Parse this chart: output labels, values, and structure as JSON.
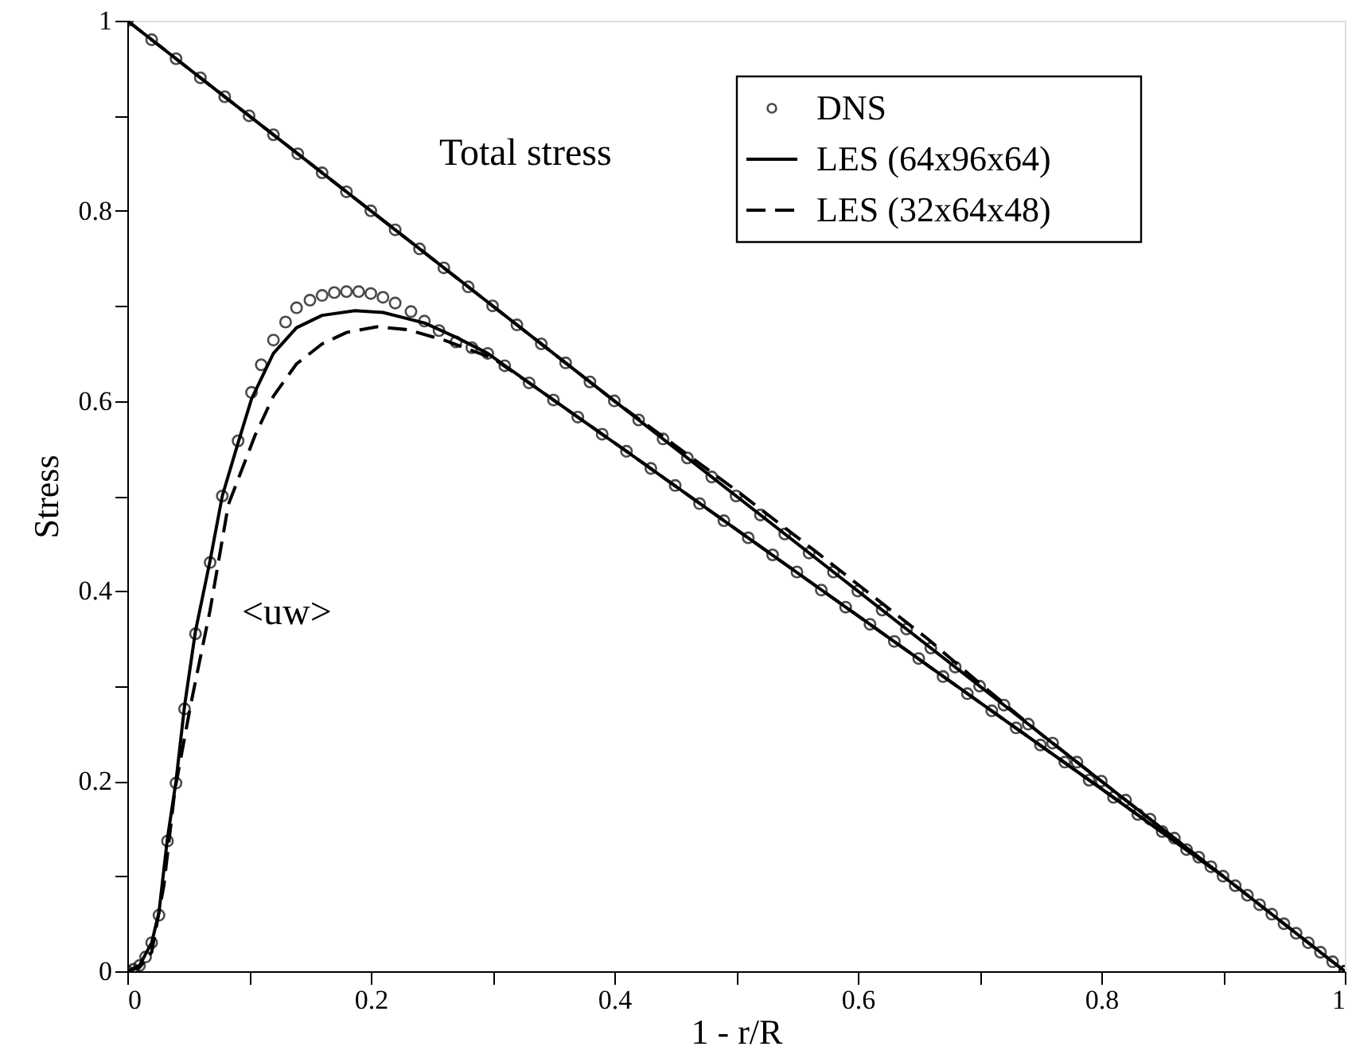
{
  "chart_data": {
    "type": "line",
    "xlabel": "1 - r/R",
    "ylabel": "Stress",
    "xlim": [
      0,
      1
    ],
    "ylim": [
      0,
      1
    ],
    "xticks": [
      0,
      {
        "value": 0.1,
        "label": null
      },
      0.2,
      {
        "value": 0.3,
        "label": null
      },
      0.4,
      {
        "value": 0.5,
        "label": null
      },
      0.6,
      {
        "value": 0.7,
        "label": null
      },
      0.8,
      {
        "value": 0.9,
        "label": null
      },
      1
    ],
    "yticks": [
      0,
      {
        "value": 0.1,
        "label": null
      },
      0.2,
      {
        "value": 0.3,
        "label": null
      },
      0.4,
      {
        "value": 0.5,
        "label": null
      },
      0.6,
      {
        "value": 0.7,
        "label": null
      },
      0.8,
      {
        "value": 0.9,
        "label": null
      },
      1
    ],
    "grid": false,
    "legend": "top right",
    "annotations": [
      "Total stress",
      "<uw>"
    ],
    "series": [
      {
        "name": "DNS",
        "type": "scatter",
        "marker": "circle",
        "color": "#000000",
        "x": [
          0,
          0.02,
          0.04,
          0.06,
          0.08,
          0.1,
          0.12,
          0.14,
          0.16,
          0.18,
          0.2,
          0.22,
          0.24,
          0.26,
          0.28,
          0.3,
          0.32,
          0.34,
          0.36,
          0.38,
          0.4,
          0.42,
          0.44,
          0.46,
          0.48,
          0.5,
          0.52,
          0.54,
          0.56,
          0.58,
          0.6,
          0.62,
          0.64,
          0.66,
          0.68,
          0.7,
          0.72,
          0.74,
          0.76,
          0.78,
          0.8,
          0.82,
          0.84,
          0.86,
          0.88,
          0.9,
          0.92,
          0.94,
          0.96,
          0.98,
          1
        ],
        "values": [
          1,
          0.98,
          0.96,
          0.94,
          0.92,
          0.9,
          0.88,
          0.86,
          0.84,
          0.82,
          0.8,
          0.78,
          0.76,
          0.74,
          0.72,
          0.7,
          0.68,
          0.66,
          0.64,
          0.62,
          0.6,
          0.58,
          0.56,
          0.54,
          0.52,
          0.5,
          0.48,
          0.46,
          0.44,
          0.42,
          0.4,
          0.38,
          0.36,
          0.34,
          0.32,
          0.3,
          0.28,
          0.26,
          0.24,
          0.22,
          0.2,
          0.18,
          0.16,
          0.14,
          0.12,
          0.1,
          0.08,
          0.06,
          0.04,
          0.02,
          0
        ]
      },
      {
        "type": "scatter",
        "marker": "circle",
        "color": "#000000",
        "x": [
          0,
          0.005,
          0.01,
          0.015,
          0.02,
          0.026,
          0.033,
          0.04,
          0.047,
          0.056,
          0.068,
          0.078,
          0.091,
          0.102,
          0.11,
          0.12,
          0.13,
          0.139,
          0.15,
          0.16,
          0.17,
          0.18,
          0.19,
          0.2,
          0.21,
          0.22,
          0.233,
          0.244,
          0.256,
          0.27,
          0.283,
          0.296,
          0.31,
          0.33,
          0.35,
          0.37,
          0.39,
          0.41,
          0.43,
          0.45,
          0.47,
          0.49,
          0.51,
          0.53,
          0.55,
          0.57,
          0.59,
          0.61,
          0.63,
          0.65,
          0.67,
          0.69,
          0.71,
          0.73,
          0.75,
          0.77,
          0.79,
          0.81,
          0.83,
          0.85,
          0.87,
          0.89,
          0.91,
          0.93,
          0.95,
          0.97,
          0.99,
          1
        ],
        "values": [
          0,
          0.002,
          0.006,
          0.015,
          0.03,
          0.059,
          0.137,
          0.198,
          0.276,
          0.355,
          0.43,
          0.5,
          0.558,
          0.609,
          0.638,
          0.664,
          0.683,
          0.698,
          0.706,
          0.711,
          0.714,
          0.715,
          0.715,
          0.713,
          0.709,
          0.703,
          0.694,
          0.684,
          0.674,
          0.662,
          0.656,
          0.65,
          0.637,
          0.619,
          0.601,
          0.583,
          0.565,
          0.547,
          0.529,
          0.511,
          0.492,
          0.474,
          0.456,
          0.438,
          0.42,
          0.401,
          0.383,
          0.365,
          0.347,
          0.329,
          0.31,
          0.292,
          0.274,
          0.256,
          0.238,
          0.22,
          0.201,
          0.183,
          0.165,
          0.147,
          0.128,
          0.11,
          0.09,
          0.07,
          0.05,
          0.03,
          0.01,
          0
        ]
      },
      {
        "name": "LES (64x96x64)",
        "line_style": "solid",
        "color": "#000000",
        "x": [
          0,
          1
        ],
        "values": [
          1,
          0
        ]
      },
      {
        "line_style": "solid",
        "color": "#000000",
        "x": [
          0,
          0.01,
          0.02,
          0.026,
          0.033,
          0.04,
          0.047,
          0.056,
          0.068,
          0.078,
          0.091,
          0.102,
          0.12,
          0.139,
          0.16,
          0.187,
          0.21,
          0.244,
          0.27,
          0.296,
          0.33,
          0.41,
          0.5,
          0.6,
          0.7,
          0.8,
          0.9
        ],
        "values": [
          0,
          0.006,
          0.03,
          0.062,
          0.14,
          0.2,
          0.279,
          0.358,
          0.432,
          0.5,
          0.556,
          0.602,
          0.65,
          0.677,
          0.69,
          0.695,
          0.693,
          0.682,
          0.667,
          0.65,
          0.619,
          0.547,
          0.465,
          0.374,
          0.283,
          0.192,
          0.1
        ]
      },
      {
        "name": "LES (32x64x48)",
        "line_style": "dashed",
        "color": "#000000",
        "x": [
          0,
          0.4,
          0.45,
          0.5,
          0.566,
          0.658,
          0.7,
          0.75,
          1
        ],
        "values": [
          1,
          0.6,
          0.553,
          0.506,
          0.441,
          0.349,
          0.303,
          0.25,
          0
        ]
      },
      {
        "line_style": "dashed",
        "color": "#000000",
        "x": [
          0,
          0.01,
          0.02,
          0.03,
          0.039,
          0.052,
          0.068,
          0.083,
          0.105,
          0.12,
          0.139,
          0.16,
          0.18,
          0.205,
          0.23,
          0.26,
          0.3,
          0.33,
          0.41,
          0.5,
          0.6,
          0.7,
          0.8,
          0.9
        ],
        "values": [
          0,
          0.004,
          0.02,
          0.09,
          0.19,
          0.28,
          0.38,
          0.491,
          0.564,
          0.605,
          0.639,
          0.66,
          0.672,
          0.678,
          0.675,
          0.664,
          0.645,
          0.619,
          0.547,
          0.465,
          0.374,
          0.283,
          0.192,
          0.1
        ]
      }
    ]
  }
}
